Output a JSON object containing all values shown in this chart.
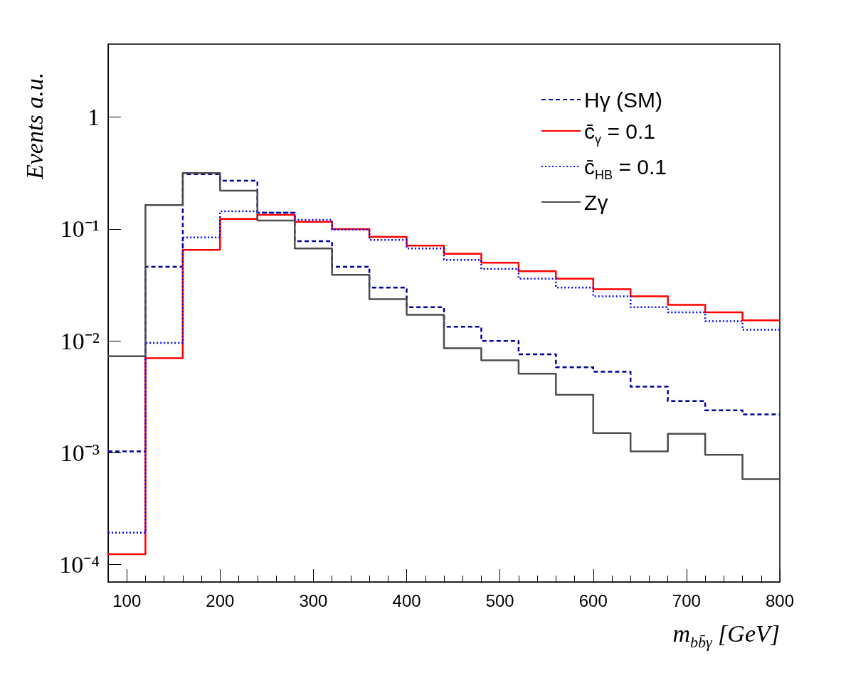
{
  "chart_data": {
    "type": "histogram",
    "xlabel": "m$_{bb̄γ}$ [GeV]",
    "ylabel": "Events a.u.",
    "bins": [
      80,
      120,
      160,
      200,
      240,
      280,
      320,
      360,
      400,
      440,
      480,
      520,
      560,
      600,
      640,
      680,
      720,
      760,
      800
    ],
    "series": [
      {
        "name": "Hγ (SM)",
        "color": "#000099",
        "line_style": "dashed",
        "values": [
          0.00103,
          0.046,
          0.31,
          0.27,
          0.14,
          0.078,
          0.046,
          0.03,
          0.02,
          0.0134,
          0.01,
          0.0076,
          0.0058,
          0.0053,
          0.0039,
          0.0029,
          0.0024,
          0.0022
        ]
      },
      {
        "name": "c̄$_{γ}$ = 0.1",
        "color": "#ff0000",
        "line_style": "solid",
        "values": [
          0.000124,
          0.007,
          0.065,
          0.123,
          0.134,
          0.116,
          0.1,
          0.085,
          0.071,
          0.06,
          0.05,
          0.042,
          0.036,
          0.029,
          0.025,
          0.021,
          0.018,
          0.0153
        ]
      },
      {
        "name": "c̄$_{HB}$ = 0.1",
        "color": "#0000ff",
        "line_style": "dotted",
        "values": [
          0.000193,
          0.0096,
          0.084,
          0.144,
          0.14,
          0.121,
          0.099,
          0.08,
          0.067,
          0.053,
          0.044,
          0.036,
          0.03,
          0.025,
          0.02,
          0.018,
          0.015,
          0.0126
        ]
      },
      {
        "name": "Zγ",
        "color": "#4d4d4d",
        "line_style": "solid",
        "values": [
          0.0073,
          0.164,
          0.316,
          0.22,
          0.119,
          0.067,
          0.039,
          0.0236,
          0.0171,
          0.0086,
          0.0067,
          0.0051,
          0.0033,
          0.0015,
          0.00103,
          0.00148,
          0.00096,
          0.00058
        ]
      }
    ],
    "xlim": [
      80,
      800
    ],
    "xticks": [
      100,
      200,
      300,
      400,
      500,
      600,
      700,
      800
    ],
    "ylim": [
      7e-05,
      4.5
    ],
    "yticks": [
      {
        "value": 0.0001,
        "label": "10⁻⁴"
      },
      {
        "value": 0.001,
        "label": "10⁻³"
      },
      {
        "value": 0.01,
        "label": "10⁻²"
      },
      {
        "value": 0.1,
        "label": "10⁻¹"
      },
      1
    ],
    "log": "y",
    "legend": "top right"
  }
}
